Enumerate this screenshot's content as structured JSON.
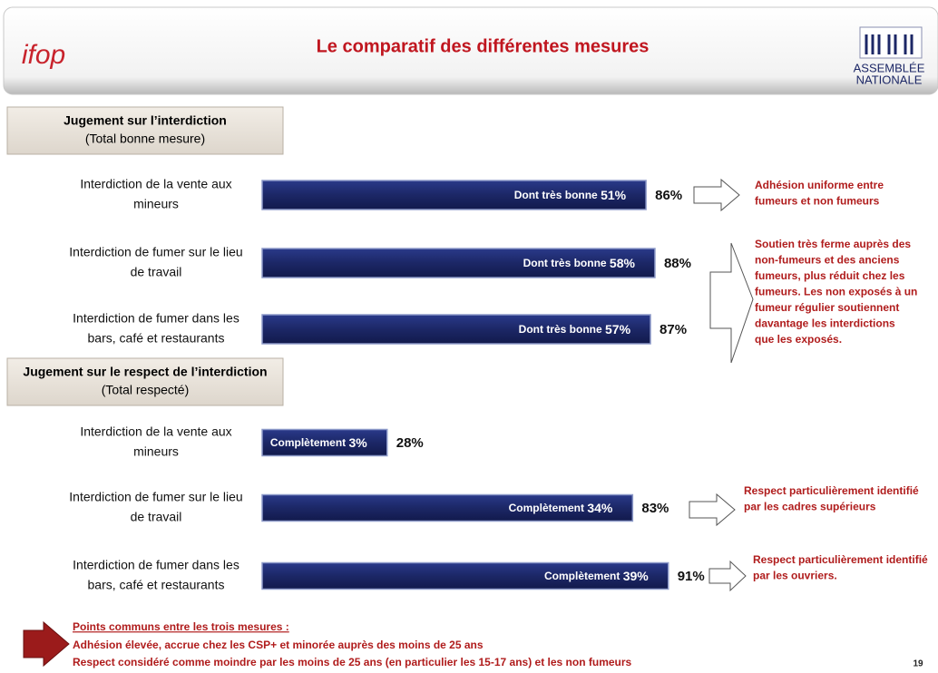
{
  "header": {
    "title": "Le comparatif des différentes mesures",
    "logo_left": "ifop",
    "logo_right_lines": [
      "ASSEMBLÉE",
      "NATIONALE"
    ]
  },
  "chart_data": {
    "type": "bar",
    "sections": [
      {
        "title": "Jugement sur l’interdiction",
        "subtitle": "(Total bonne mesure)",
        "color": "#1c2766",
        "items": [
          {
            "label_lines": [
              "Interdiction de la vente aux",
              "mineurs"
            ],
            "value": 86,
            "value_label": "86%",
            "detail_label": "Dont très bonne",
            "detail_value": 51,
            "detail_value_label": "51%"
          },
          {
            "label_lines": [
              "Interdiction de fumer sur le lieu",
              "de travail"
            ],
            "value": 88,
            "value_label": "88%",
            "detail_label": "Dont très bonne",
            "detail_value": 58,
            "detail_value_label": "58%"
          },
          {
            "label_lines": [
              "Interdiction de fumer dans les",
              "bars, café et restaurants"
            ],
            "value": 87,
            "value_label": "87%",
            "detail_label": "Dont très bonne",
            "detail_value": 57,
            "detail_value_label": "57%"
          }
        ]
      },
      {
        "title": "Jugement sur le respect de l’interdiction",
        "subtitle": "(Total respecté)",
        "color": "#1c2766",
        "items": [
          {
            "label_lines": [
              "Interdiction de la vente aux",
              "mineurs"
            ],
            "value": 28,
            "value_label": "28%",
            "detail_label": "Complètement",
            "detail_value": 3,
            "detail_value_label": "3%"
          },
          {
            "label_lines": [
              "Interdiction de fumer sur le lieu",
              "de travail"
            ],
            "value": 83,
            "value_label": "83%",
            "detail_label": "Complètement",
            "detail_value": 34,
            "detail_value_label": "34%"
          },
          {
            "label_lines": [
              "Interdiction de fumer dans les",
              "bars, café et restaurants"
            ],
            "value": 91,
            "value_label": "91%",
            "detail_label": "Complètement",
            "detail_value": 39,
            "detail_value_label": "39%"
          }
        ]
      }
    ]
  },
  "notes": [
    {
      "lines": [
        "Adhésion uniforme entre",
        "fumeurs et non fumeurs"
      ]
    },
    {
      "lines": [
        "Soutien très ferme auprès des",
        "non-fumeurs et des anciens",
        "fumeurs, plus réduit chez les",
        "fumeurs. Les non exposés à un",
        "fumeur régulier soutiennent",
        "davantage les interdictions",
        "que les exposés."
      ]
    },
    {
      "lines": [
        "Respect particulièrement identifié",
        "par les cadres supérieurs"
      ]
    },
    {
      "lines": [
        "Respect particulièrement identifié",
        "par les ouvriers."
      ]
    }
  ],
  "footer": {
    "title": "Points communs entre les trois mesures :",
    "lines": [
      "Adhésion élevée, accrue chez les CSP+ et minorée auprès des moins de 25 ans",
      "Respect considéré comme moindre par les moins de 25 ans  (en particulier les 15-17 ans) et les non fumeurs"
    ],
    "page": "19"
  }
}
